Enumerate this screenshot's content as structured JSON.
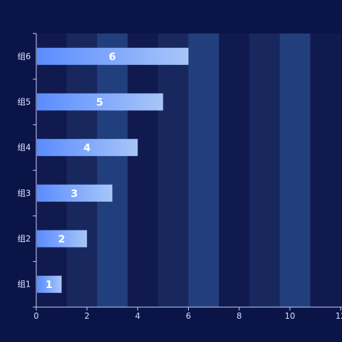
{
  "theme": {
    "page_bg": "#0b1447",
    "panel_bg": "#0a1244",
    "band_colors": [
      "#111a4e",
      "#18285f",
      "#223f7d"
    ],
    "axis_color": "#cfd8ff",
    "bar_gradient_start": "#5b8cff",
    "bar_gradient_end": "#a7c6f8"
  },
  "chart_data": {
    "type": "bar",
    "orientation": "horizontal",
    "categories": [
      "组1",
      "组2",
      "组3",
      "组4",
      "组5",
      "组6"
    ],
    "values": [
      1,
      2,
      3,
      4,
      5,
      6
    ],
    "value_labels": [
      "1",
      "2",
      "3",
      "4",
      "5",
      "6"
    ],
    "x_ticks": [
      "0",
      "2",
      "4",
      "6",
      "8",
      "10",
      "12"
    ],
    "xlim": [
      0,
      12
    ],
    "title": "",
    "xlabel": "",
    "ylabel": "",
    "grid": false,
    "legend": "none"
  }
}
